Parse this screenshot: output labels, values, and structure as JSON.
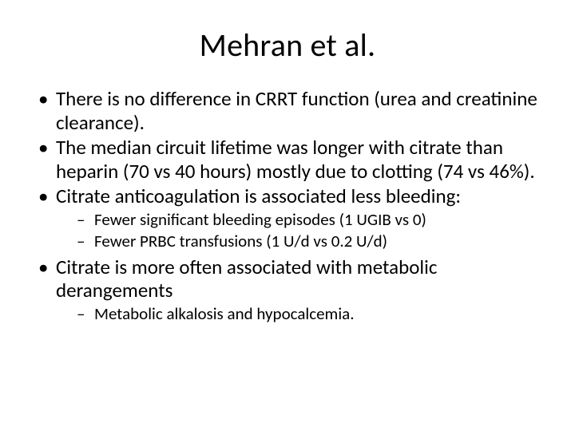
{
  "slide": {
    "title": "Mehran et al.",
    "bullets": [
      {
        "text": "There is no difference in CRRT function (urea and creatinine clearance).",
        "children": []
      },
      {
        "text": "The median circuit lifetime was longer with citrate than heparin (70 vs 40 hours) mostly due to clotting (74 vs 46%).",
        "children": []
      },
      {
        "text": "Citrate anticoagulation is associated less bleeding:",
        "children": [
          "Fewer significant bleeding episodes (1 UGIB vs 0)",
          "Fewer PRBC transfusions (1 U/d vs 0.2 U/d)"
        ]
      },
      {
        "text": "Citrate is more often associated with metabolic derangements",
        "children": [
          "Metabolic alkalosis and hypocalcemia."
        ]
      }
    ],
    "styling": {
      "background_color": "#ffffff",
      "text_color": "#000000",
      "title_fontsize": 40,
      "body_fontsize": 25,
      "sub_fontsize": 21,
      "font_family": "Calibri"
    }
  }
}
